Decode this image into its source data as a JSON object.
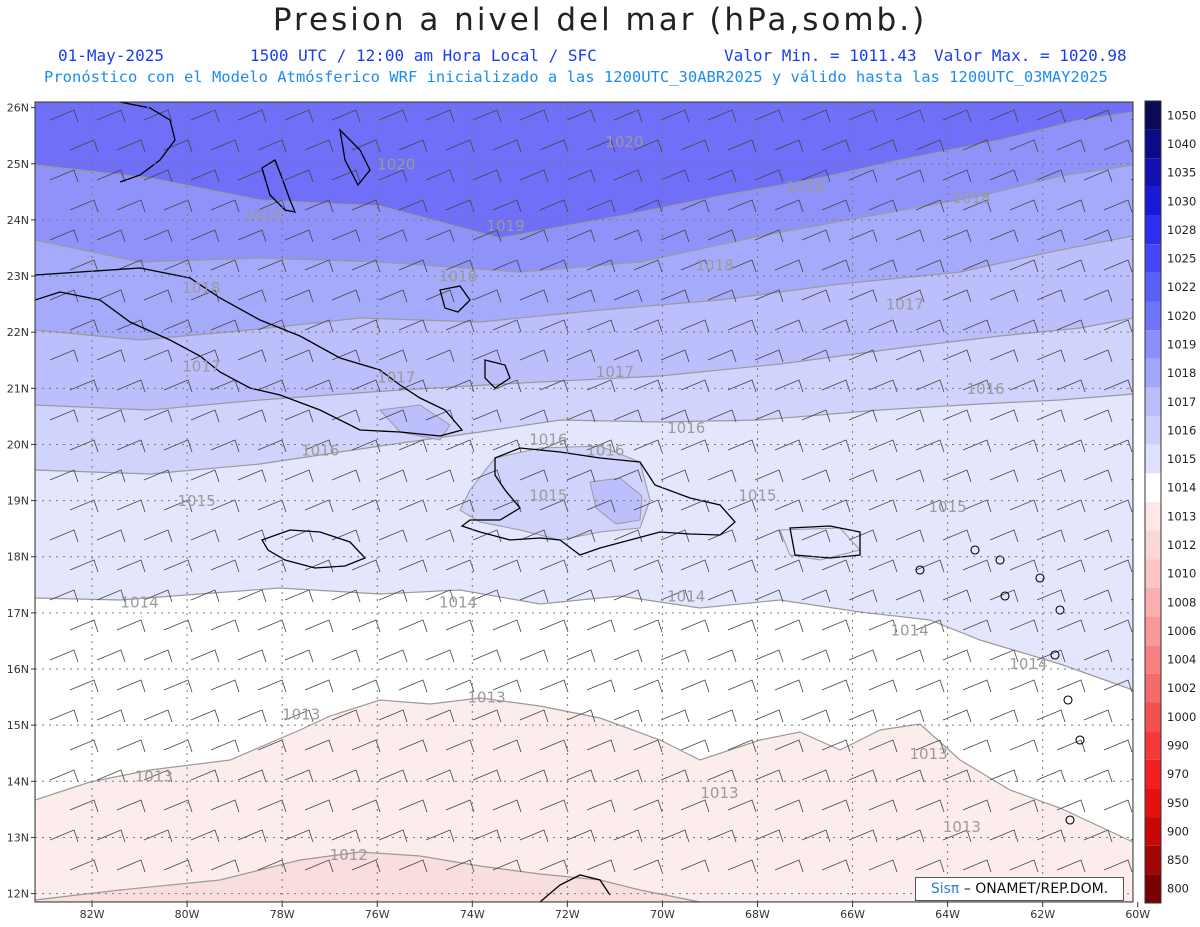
{
  "header": {
    "title": "Presion a nivel del mar (hPa,somb.)",
    "date": "01-May-2025",
    "time": "1500 UTC / 12:00 am Hora Local / SFC",
    "min_label": "Valor Min. = 1011.43",
    "max_label": "Valor Max. = 1020.98",
    "forecast_line": "Pronóstico con el Modelo Atmósferico WRF inicializado a las 1200UTC_30ABR2025 y válido hasta las  1200UTC_03MAY2025"
  },
  "credit": {
    "brand": "Sisπ",
    "text": "– ONAMET/REP.DOM."
  },
  "map": {
    "lon_range": [
      -83.2,
      -60.1
    ],
    "lat_range": [
      11.85,
      26.1
    ],
    "lon_ticks": [
      "82W",
      "80W",
      "78W",
      "76W",
      "74W",
      "72W",
      "70W",
      "68W",
      "66W",
      "64W",
      "62W",
      "60W"
    ],
    "lat_ticks": [
      "26N",
      "25N",
      "24N",
      "23N",
      "22N",
      "21N",
      "20N",
      "19N",
      "18N",
      "17N",
      "16N",
      "15N",
      "14N",
      "13N",
      "12N"
    ],
    "contour_labels": [
      {
        "text": "1020",
        "lon": -75.6,
        "lat": 24.9
      },
      {
        "text": "1020",
        "lon": -70.8,
        "lat": 25.3
      },
      {
        "text": "1019",
        "lon": -78.4,
        "lat": 24.0
      },
      {
        "text": "1019",
        "lon": -73.3,
        "lat": 23.8
      },
      {
        "text": "1019",
        "lon": -67.0,
        "lat": 24.5
      },
      {
        "text": "1018",
        "lon": -63.5,
        "lat": 24.3
      },
      {
        "text": "1018",
        "lon": -79.7,
        "lat": 22.7
      },
      {
        "text": "1018",
        "lon": -74.3,
        "lat": 22.9
      },
      {
        "text": "1018",
        "lon": -68.9,
        "lat": 23.1
      },
      {
        "text": "1017",
        "lon": -64.9,
        "lat": 22.4
      },
      {
        "text": "1017",
        "lon": -79.7,
        "lat": 21.3
      },
      {
        "text": "1017",
        "lon": -75.6,
        "lat": 21.1
      },
      {
        "text": "1017",
        "lon": -71.0,
        "lat": 21.2
      },
      {
        "text": "1016",
        "lon": -63.2,
        "lat": 20.9
      },
      {
        "text": "1016",
        "lon": -69.5,
        "lat": 20.2
      },
      {
        "text": "1016",
        "lon": -72.4,
        "lat": 20.0
      },
      {
        "text": "1016",
        "lon": -77.2,
        "lat": 19.8
      },
      {
        "text": "1016",
        "lon": -71.2,
        "lat": 19.8
      },
      {
        "text": "1015",
        "lon": -79.8,
        "lat": 18.9
      },
      {
        "text": "1015",
        "lon": -72.4,
        "lat": 19.0
      },
      {
        "text": "1015",
        "lon": -68.0,
        "lat": 19.0
      },
      {
        "text": "1015",
        "lon": -64.0,
        "lat": 18.8
      },
      {
        "text": "1014",
        "lon": -81.0,
        "lat": 17.1
      },
      {
        "text": "1014",
        "lon": -74.3,
        "lat": 17.1
      },
      {
        "text": "1014",
        "lon": -69.5,
        "lat": 17.2
      },
      {
        "text": "1014",
        "lon": -64.8,
        "lat": 16.6
      },
      {
        "text": "1014",
        "lon": -62.3,
        "lat": 16.0
      },
      {
        "text": "1013",
        "lon": -77.6,
        "lat": 15.1
      },
      {
        "text": "1013",
        "lon": -73.7,
        "lat": 15.4
      },
      {
        "text": "1013",
        "lon": -80.7,
        "lat": 14.0
      },
      {
        "text": "1013",
        "lon": -68.8,
        "lat": 13.7
      },
      {
        "text": "1013",
        "lon": -64.4,
        "lat": 14.4
      },
      {
        "text": "1013",
        "lon": -63.7,
        "lat": 13.1
      },
      {
        "text": "1012",
        "lon": -76.6,
        "lat": 12.6
      }
    ]
  },
  "colorbar": {
    "levels": [
      "1050",
      "1040",
      "1035",
      "1030",
      "1028",
      "1025",
      "1022",
      "1020",
      "1019",
      "1018",
      "1017",
      "1016",
      "1015",
      "1014",
      "1013",
      "1012",
      "1010",
      "1008",
      "1006",
      "1004",
      "1002",
      "1000",
      "990",
      "970",
      "950",
      "900",
      "850",
      "800"
    ],
    "colors": [
      "#0a0a55",
      "#0b0b88",
      "#1010b5",
      "#1a1ad6",
      "#2e2ef0",
      "#4646f8",
      "#5a5ffa",
      "#6e74fb",
      "#8a8ffb",
      "#a2a7fb",
      "#babdfc",
      "#cccffd",
      "#dfe1fe",
      "#ffffff",
      "#fde7e7",
      "#fdd6d6",
      "#fcc4c4",
      "#fbb0b0",
      "#f99999",
      "#f88080",
      "#f76a6a",
      "#f55050",
      "#f33a3a",
      "#f22020",
      "#e51010",
      "#c80808",
      "#a00404",
      "#780000"
    ]
  },
  "fill_colors": {
    "p1012": "#f9dede",
    "p1013": "#fdecec",
    "p1014": "#ffffff",
    "p1015": "#e4e6fd",
    "p1016": "#d0d3fc",
    "p1017": "#bcbffb",
    "p1018": "#a6aafa",
    "p1019": "#8f93f9",
    "p1020": "#6f6ff8",
    "contour": "#9a9a9a",
    "coast": "#000000"
  }
}
